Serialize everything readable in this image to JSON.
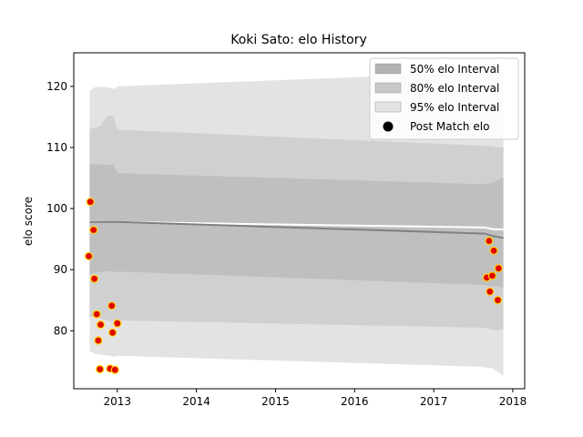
{
  "chart_data": {
    "type": "scatter",
    "title": "Koki Sato: elo History",
    "xlabel": "",
    "ylabel": "elo score",
    "xlim": [
      2012.45,
      2018.15
    ],
    "ylim": [
      70.5,
      125.5
    ],
    "xticks": [
      2013,
      2014,
      2015,
      2016,
      2017,
      2018
    ],
    "yticks": [
      80,
      90,
      100,
      110,
      120
    ],
    "grid": false,
    "legend_position": "top-right",
    "legend": [
      {
        "label": "50% elo Interval",
        "kind": "band",
        "color": "#b3b3b3"
      },
      {
        "label": "80% elo Interval",
        "kind": "band",
        "color": "#c7c7c7"
      },
      {
        "label": "95% elo Interval",
        "kind": "band",
        "color": "#e3e3e3"
      },
      {
        "label": "Post Match elo",
        "kind": "marker",
        "color": "#000000"
      }
    ],
    "bands": [
      {
        "name": "95% elo Interval",
        "color": "#e3e3e3",
        "x": [
          2012.65,
          2012.72,
          2012.85,
          2012.98,
          2013.0,
          2017.6,
          2017.75,
          2017.88
        ],
        "upper": [
          119.3,
          119.9,
          119.9,
          119.6,
          120.0,
          122.3,
          122.4,
          122.4
        ],
        "lower": [
          76.7,
          76.2,
          76.0,
          75.7,
          75.9,
          74.1,
          73.8,
          72.6
        ]
      },
      {
        "name": "80% elo Interval",
        "color": "#d0d0d0",
        "x": [
          2012.65,
          2012.78,
          2012.88,
          2012.95,
          2013.0,
          2017.6,
          2017.72,
          2017.8,
          2017.88
        ],
        "upper": [
          113.0,
          113.5,
          115.2,
          115.1,
          112.9,
          110.3,
          110.2,
          110.0,
          110.0
        ],
        "lower": [
          82.3,
          82.1,
          81.6,
          81.6,
          81.7,
          80.5,
          80.3,
          80.0,
          80.3
        ]
      },
      {
        "name": "50% elo Interval",
        "color": "#bfbfbf",
        "x": [
          2012.65,
          2012.72,
          2012.88,
          2012.95,
          2013.0,
          2017.6,
          2017.75,
          2017.82,
          2017.88
        ],
        "upper": [
          107.2,
          107.3,
          107.1,
          107.2,
          105.8,
          104.0,
          104.2,
          104.7,
          105.1
        ],
        "lower": [
          89.3,
          89.5,
          89.8,
          89.6,
          89.7,
          87.5,
          87.3,
          87.2,
          87.0
        ]
      }
    ],
    "lines": [
      {
        "color": "#ffffff",
        "x": [
          2012.65,
          2013.0,
          2017.65,
          2017.75,
          2017.88
        ],
        "y": [
          97.9,
          97.8,
          96.9,
          96.6,
          96.6
        ]
      },
      {
        "color": "#808080",
        "x": [
          2012.65,
          2013.0,
          2017.65,
          2017.75,
          2017.88
        ],
        "y": [
          97.8,
          97.8,
          95.9,
          95.5,
          95.2
        ]
      }
    ],
    "series": [
      {
        "name": "Post Match elo",
        "marker_face": "#e00000",
        "marker_edge": "#ffd700",
        "points": [
          [
            2012.66,
            101.1
          ],
          [
            2012.7,
            96.5
          ],
          [
            2012.64,
            92.2
          ],
          [
            2012.71,
            88.5
          ],
          [
            2012.74,
            82.7
          ],
          [
            2012.79,
            81.0
          ],
          [
            2012.76,
            78.4
          ],
          [
            2012.78,
            73.7
          ],
          [
            2012.91,
            73.8
          ],
          [
            2012.93,
            84.1
          ],
          [
            2012.94,
            79.7
          ],
          [
            2013.0,
            81.2
          ],
          [
            2012.97,
            73.6
          ],
          [
            2017.7,
            94.7
          ],
          [
            2017.76,
            93.1
          ],
          [
            2017.67,
            88.7
          ],
          [
            2017.74,
            89.0
          ],
          [
            2017.82,
            90.2
          ],
          [
            2017.71,
            86.4
          ],
          [
            2017.81,
            85.0
          ]
        ]
      }
    ]
  }
}
